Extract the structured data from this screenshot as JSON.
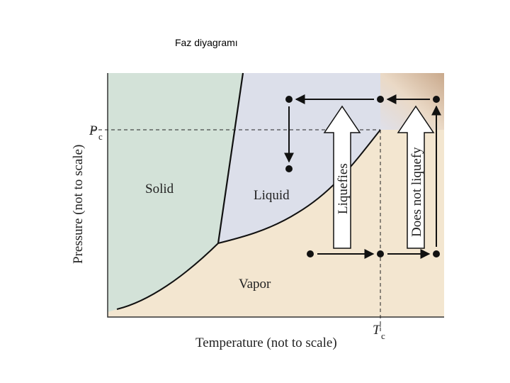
{
  "title": "Faz  diyagramı",
  "axes": {
    "y_label": "Pressure (not to scale)",
    "x_label": "Temperature (not to scale)"
  },
  "critical": {
    "pressure": {
      "symbol": "P",
      "subscript": "c"
    },
    "temperature": {
      "symbol": "T",
      "subscript": "c"
    }
  },
  "regions": {
    "solid": "Solid",
    "liquid": "Liquid",
    "vapor": "Vapor"
  },
  "arrows": {
    "liquefies": "Liquefies",
    "not_liquefy": "Does not liquefy"
  }
}
